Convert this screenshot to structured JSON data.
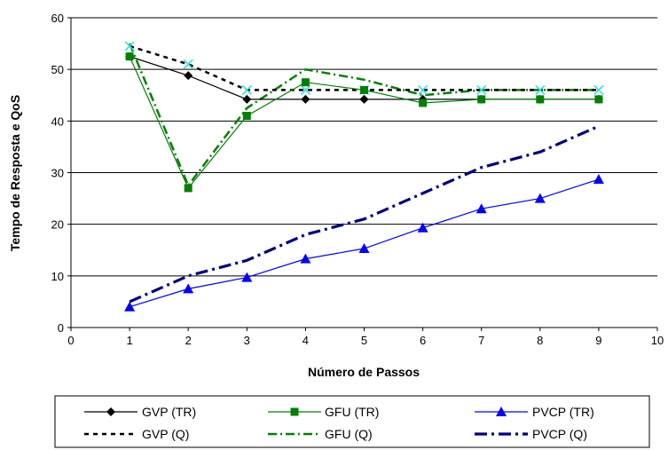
{
  "chart_data": {
    "type": "line",
    "title": "",
    "xlabel": "Número de Passos",
    "ylabel": "Tempo de Resposta e QoS",
    "xlim": [
      0,
      10
    ],
    "ylim": [
      0,
      60
    ],
    "x_ticks": [
      "0",
      "1",
      "2",
      "3",
      "4",
      "5",
      "6",
      "7",
      "8",
      "9",
      "10"
    ],
    "y_ticks": [
      "0",
      "10",
      "20",
      "30",
      "40",
      "50",
      "60"
    ],
    "grid": "horizontal",
    "legend_position": "bottom",
    "series": [
      {
        "name": "GVP (TR)",
        "x": [
          1,
          2,
          3,
          4,
          5,
          6,
          7,
          8,
          9
        ],
        "values": [
          52.5,
          48.8,
          44.2,
          44.2,
          44.2,
          44.2,
          44.2,
          44.2,
          44.2
        ],
        "color": "#000000",
        "dash": "solid",
        "marker": "diamond"
      },
      {
        "name": "GFU (TR)",
        "x": [
          1,
          2,
          3,
          4,
          5,
          6,
          7,
          8,
          9
        ],
        "values": [
          52.5,
          27,
          41,
          47.5,
          46,
          43.5,
          44.2,
          44.2,
          44.2
        ],
        "color": "#008000",
        "dash": "solid",
        "marker": "square"
      },
      {
        "name": "PVCP (TR)",
        "x": [
          1,
          2,
          3,
          4,
          5,
          6,
          7,
          8,
          9
        ],
        "values": [
          4,
          7.5,
          9.7,
          13.3,
          15.3,
          19.3,
          23,
          25,
          28.7
        ],
        "color": "#0000ff",
        "dash": "solid",
        "marker": "triangle"
      },
      {
        "name": "GVP (Q)",
        "x": [
          1,
          2,
          3,
          4,
          5,
          6,
          7,
          8,
          9
        ],
        "values": [
          54.5,
          51,
          46,
          46,
          46,
          46,
          46,
          46,
          46
        ],
        "color": "#000000",
        "dash": "dotted",
        "marker": "x"
      },
      {
        "name": "GFU (Q)",
        "x": [
          1,
          2,
          3,
          4,
          5,
          6,
          7,
          8,
          9
        ],
        "values": [
          55,
          27.5,
          42.5,
          50,
          48,
          45,
          46,
          46,
          46
        ],
        "color": "#008000",
        "dash": "dashdot",
        "marker": "none"
      },
      {
        "name": "PVCP (Q)",
        "x": [
          1,
          2,
          3,
          4,
          5,
          6,
          7,
          8,
          9
        ],
        "values": [
          5,
          10,
          13,
          18,
          21,
          26,
          31,
          34,
          39
        ],
        "color": "#000080",
        "dash": "dashdot-bold",
        "marker": "none"
      }
    ]
  }
}
